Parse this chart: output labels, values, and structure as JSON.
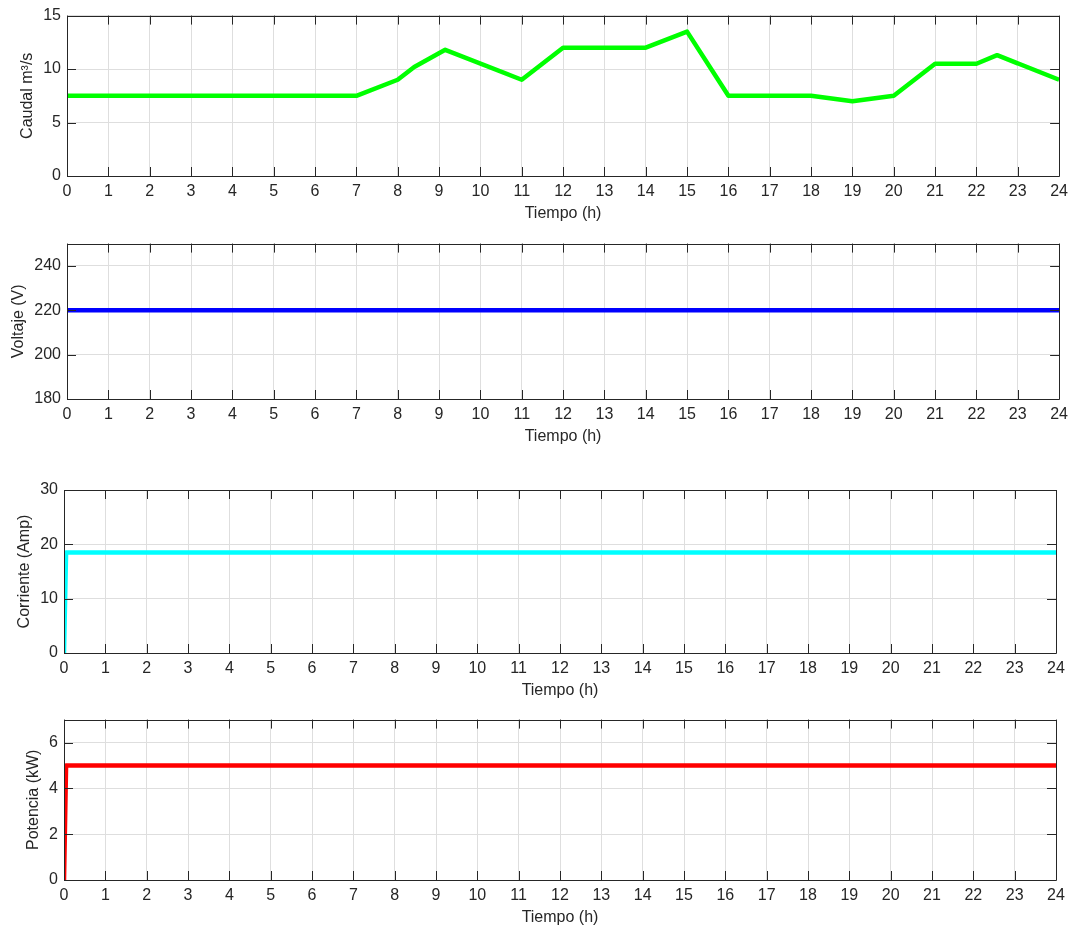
{
  "chart_data": [
    {
      "type": "line",
      "xlabel": "Tiempo (h)",
      "ylabel": "Caudal m³/s",
      "x": [
        0,
        7,
        8,
        8.4,
        9.15,
        11,
        12,
        14,
        15,
        16,
        18,
        19,
        20,
        21,
        22,
        22.5,
        24
      ],
      "values": [
        7.5,
        7.5,
        9,
        10.2,
        11.8,
        9,
        12,
        12,
        13.5,
        7.5,
        7.5,
        7,
        7.5,
        10.5,
        10.5,
        11.3,
        9
      ],
      "color": "#00ff00",
      "xlim": [
        0,
        24
      ],
      "xticks": [
        0,
        1,
        2,
        3,
        4,
        5,
        6,
        7,
        8,
        9,
        10,
        11,
        12,
        13,
        14,
        15,
        16,
        17,
        18,
        19,
        20,
        21,
        22,
        23,
        24
      ],
      "ylim": [
        0,
        15
      ],
      "yticks": [
        0,
        5,
        10,
        15
      ],
      "grid": true
    },
    {
      "type": "line",
      "xlabel": "Tiempo (h)",
      "ylabel": "Voltaje (V)",
      "x": [
        0,
        24
      ],
      "values": [
        220,
        220
      ],
      "color": "#0000ff",
      "xlim": [
        0,
        24
      ],
      "xticks": [
        0,
        1,
        2,
        3,
        4,
        5,
        6,
        7,
        8,
        9,
        10,
        11,
        12,
        13,
        14,
        15,
        16,
        17,
        18,
        19,
        20,
        21,
        22,
        23,
        24
      ],
      "ylim": [
        180,
        250
      ],
      "yticks": [
        180,
        200,
        220,
        240
      ],
      "grid": true
    },
    {
      "type": "line",
      "xlabel": "Tiempo (h)",
      "ylabel": "Corriente (Amp)",
      "x": [
        0,
        0.05,
        24
      ],
      "values": [
        0,
        18.5,
        18.5
      ],
      "color": "#00ffff",
      "xlim": [
        0,
        24
      ],
      "xticks": [
        0,
        1,
        2,
        3,
        4,
        5,
        6,
        7,
        8,
        9,
        10,
        11,
        12,
        13,
        14,
        15,
        16,
        17,
        18,
        19,
        20,
        21,
        22,
        23,
        24
      ],
      "ylim": [
        0,
        30
      ],
      "yticks": [
        0,
        10,
        20,
        30
      ],
      "grid": true
    },
    {
      "type": "line",
      "xlabel": "Tiempo (h)",
      "ylabel": "Potencia (kW)",
      "x": [
        0,
        0.05,
        24
      ],
      "values": [
        0,
        5,
        5
      ],
      "color": "#ff0000",
      "xlim": [
        0,
        24
      ],
      "xticks": [
        0,
        1,
        2,
        3,
        4,
        5,
        6,
        7,
        8,
        9,
        10,
        11,
        12,
        13,
        14,
        15,
        16,
        17,
        18,
        19,
        20,
        21,
        22,
        23,
        24
      ],
      "ylim": [
        0,
        7
      ],
      "yticks": [
        0,
        2,
        4,
        6
      ],
      "grid": true
    }
  ]
}
